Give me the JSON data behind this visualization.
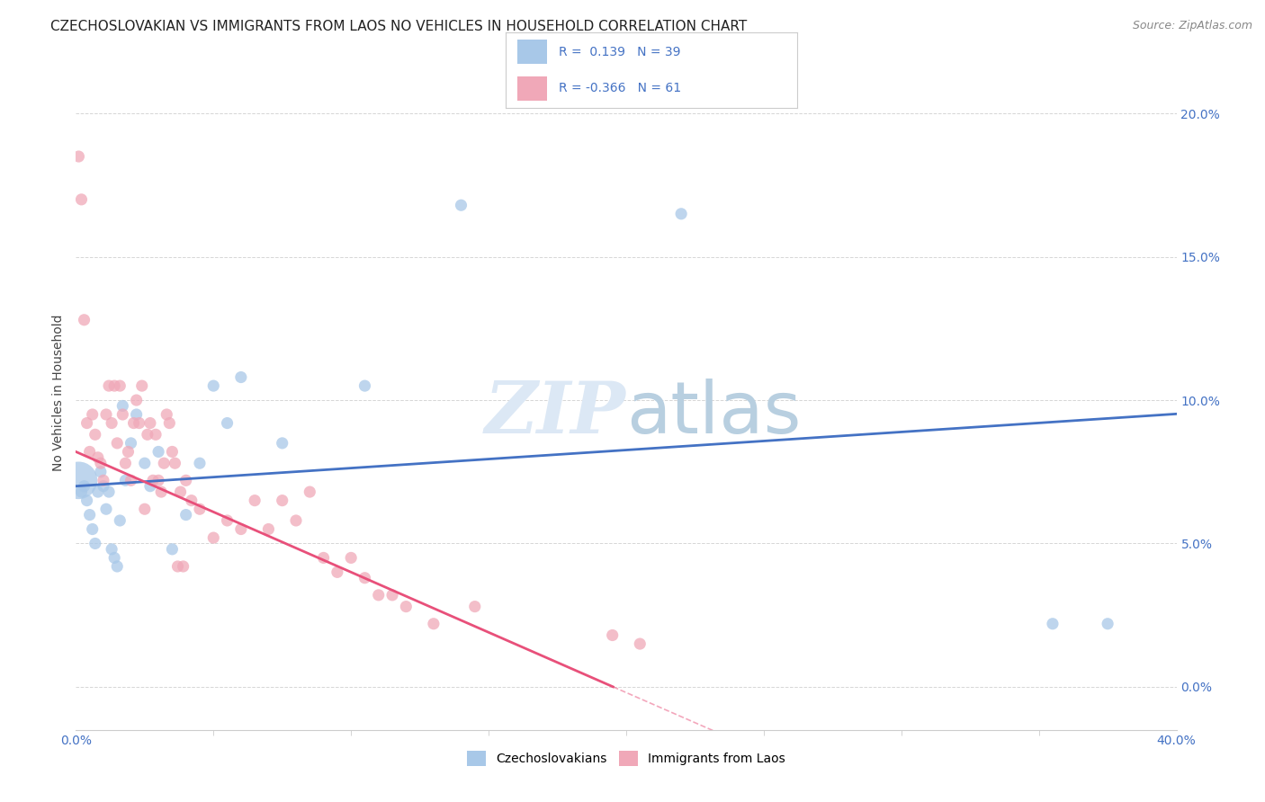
{
  "title": "CZECHOSLOVAKIAN VS IMMIGRANTS FROM LAOS NO VEHICLES IN HOUSEHOLD CORRELATION CHART",
  "source": "Source: ZipAtlas.com",
  "ylabel": "No Vehicles in Household",
  "xlim": [
    0.0,
    40.0
  ],
  "ylim": [
    -1.5,
    22.0
  ],
  "yticks": [
    0.0,
    5.0,
    10.0,
    15.0,
    20.0
  ],
  "ytick_labels_right": [
    "0.0%",
    "5.0%",
    "10.0%",
    "15.0%",
    "20.0%"
  ],
  "blue_color": "#a8c8e8",
  "pink_color": "#f0a8b8",
  "blue_line_color": "#4472c4",
  "pink_line_color": "#e8507a",
  "background_color": "#ffffff",
  "grid_color": "#cccccc",
  "axis_color": "#4472c4",
  "blue_intercept": 7.0,
  "blue_slope": 0.063,
  "pink_intercept": 8.2,
  "pink_slope": -0.42,
  "blue_points_x": [
    0.1,
    0.2,
    0.3,
    0.4,
    0.5,
    0.6,
    0.7,
    0.8,
    0.9,
    1.0,
    1.1,
    1.2,
    1.3,
    1.4,
    1.5,
    1.6,
    1.7,
    1.8,
    2.0,
    2.2,
    2.5,
    2.7,
    3.0,
    3.5,
    4.0,
    4.5,
    5.0,
    5.5,
    6.0,
    7.5,
    10.5,
    14.0,
    22.0,
    35.5,
    37.5
  ],
  "blue_points_y": [
    7.2,
    6.8,
    7.0,
    6.5,
    6.0,
    5.5,
    5.0,
    6.8,
    7.5,
    7.0,
    6.2,
    6.8,
    4.8,
    4.5,
    4.2,
    5.8,
    9.8,
    7.2,
    8.5,
    9.5,
    7.8,
    7.0,
    8.2,
    4.8,
    6.0,
    7.8,
    10.5,
    9.2,
    10.8,
    8.5,
    10.5,
    16.8,
    16.5,
    2.2,
    2.2
  ],
  "blue_sizes_large": [
    4
  ],
  "pink_points_x": [
    0.1,
    0.2,
    0.3,
    0.4,
    0.5,
    0.6,
    0.7,
    0.8,
    0.9,
    1.0,
    1.1,
    1.2,
    1.3,
    1.4,
    1.5,
    1.6,
    1.7,
    1.8,
    1.9,
    2.0,
    2.1,
    2.2,
    2.3,
    2.4,
    2.5,
    2.6,
    2.7,
    2.8,
    2.9,
    3.0,
    3.1,
    3.2,
    3.3,
    3.4,
    3.5,
    3.6,
    3.7,
    3.8,
    3.9,
    4.0,
    4.2,
    4.5,
    5.0,
    5.5,
    6.0,
    6.5,
    7.0,
    7.5,
    8.0,
    8.5,
    9.0,
    9.5,
    10.0,
    10.5,
    11.0,
    11.5,
    12.0,
    13.0,
    14.5,
    19.5,
    20.5
  ],
  "pink_points_y": [
    18.5,
    17.0,
    12.8,
    9.2,
    8.2,
    9.5,
    8.8,
    8.0,
    7.8,
    7.2,
    9.5,
    10.5,
    9.2,
    10.5,
    8.5,
    10.5,
    9.5,
    7.8,
    8.2,
    7.2,
    9.2,
    10.0,
    9.2,
    10.5,
    6.2,
    8.8,
    9.2,
    7.2,
    8.8,
    7.2,
    6.8,
    7.8,
    9.5,
    9.2,
    8.2,
    7.8,
    4.2,
    6.8,
    4.2,
    7.2,
    6.5,
    6.2,
    5.2,
    5.8,
    5.5,
    6.5,
    5.5,
    6.5,
    5.8,
    6.8,
    4.5,
    4.0,
    4.5,
    3.8,
    3.2,
    3.2,
    2.8,
    2.2,
    2.8,
    1.8,
    1.5
  ]
}
